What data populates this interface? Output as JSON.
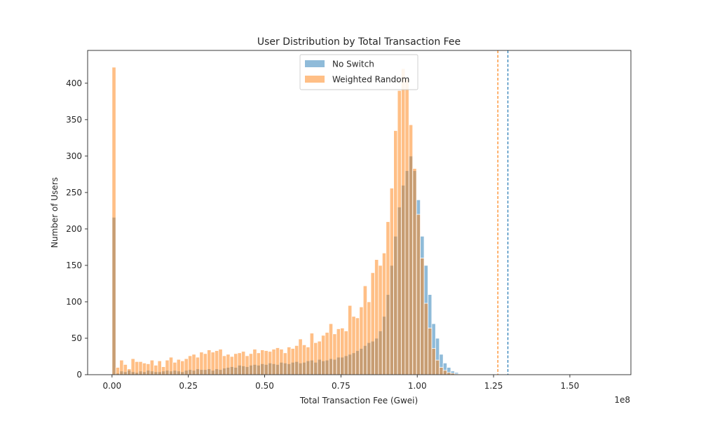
{
  "chart_data": {
    "type": "bar",
    "title": "User Distribution by Total Transaction Fee",
    "xlabel": "Total Transaction Fee (Gwei)",
    "ylabel": "Number of Users",
    "x_offset_label": "1e8",
    "x_unit_scale": 100000000,
    "xlim": [
      -0.08,
      1.7
    ],
    "ylim": [
      0,
      445
    ],
    "x_ticks": [
      {
        "value": 0.0,
        "label": "0.00"
      },
      {
        "value": 0.25,
        "label": "0.25"
      },
      {
        "value": 0.5,
        "label": "0.50"
      },
      {
        "value": 0.75,
        "label": "0.75"
      },
      {
        "value": 1.0,
        "label": "1.00"
      },
      {
        "value": 1.25,
        "label": "1.25"
      },
      {
        "value": 1.5,
        "label": "1.50"
      }
    ],
    "y_ticks": [
      {
        "value": 0,
        "label": "0"
      },
      {
        "value": 50,
        "label": "50"
      },
      {
        "value": 100,
        "label": "100"
      },
      {
        "value": 150,
        "label": "150"
      },
      {
        "value": 200,
        "label": "200"
      },
      {
        "value": 250,
        "label": "250"
      },
      {
        "value": 300,
        "label": "300"
      },
      {
        "value": 350,
        "label": "350"
      },
      {
        "value": 400,
        "label": "400"
      }
    ],
    "grid": false,
    "legend_position": "upper center",
    "bin_start": 0.0,
    "bin_width": 0.01247,
    "series": [
      {
        "name": "No Switch",
        "color": "#1f77b4",
        "values": [
          216,
          2,
          5,
          4,
          6,
          4,
          3,
          5,
          4,
          6,
          5,
          4,
          4,
          5,
          6,
          5,
          6,
          5,
          4,
          6,
          7,
          6,
          8,
          7,
          7,
          8,
          6,
          8,
          7,
          9,
          10,
          11,
          10,
          13,
          12,
          11,
          13,
          14,
          13,
          15,
          14,
          16,
          15,
          14,
          17,
          16,
          15,
          17,
          18,
          16,
          17,
          19,
          20,
          17,
          21,
          19,
          20,
          22,
          21,
          24,
          24,
          26,
          28,
          30,
          33,
          36,
          40,
          44,
          46,
          50,
          60,
          80,
          110,
          150,
          190,
          230,
          260,
          280,
          300,
          280,
          240,
          190,
          150,
          110,
          70,
          50,
          28,
          16,
          10,
          5,
          3
        ]
      },
      {
        "name": "Weighted Random",
        "color": "#ff7f0e",
        "values": [
          422,
          10,
          20,
          14,
          8,
          22,
          18,
          18,
          16,
          15,
          20,
          13,
          19,
          11,
          20,
          24,
          17,
          21,
          19,
          22,
          26,
          28,
          24,
          31,
          29,
          34,
          31,
          33,
          35,
          26,
          28,
          25,
          29,
          30,
          32,
          26,
          29,
          35,
          30,
          34,
          33,
          32,
          35,
          37,
          35,
          30,
          38,
          36,
          40,
          49,
          41,
          38,
          57,
          44,
          46,
          54,
          58,
          70,
          56,
          63,
          64,
          60,
          95,
          80,
          78,
          93,
          122,
          100,
          140,
          158,
          150,
          167,
          210,
          256,
          335,
          390,
          420,
          406,
          343,
          283,
          220,
          160,
          98,
          64,
          36,
          20,
          10,
          6,
          3,
          2,
          1
        ]
      }
    ],
    "reference_lines": [
      {
        "series": "No Switch",
        "x": 1.297,
        "style": "dashed"
      },
      {
        "series": "Weighted Random",
        "x": 1.264,
        "style": "dashed"
      }
    ]
  }
}
